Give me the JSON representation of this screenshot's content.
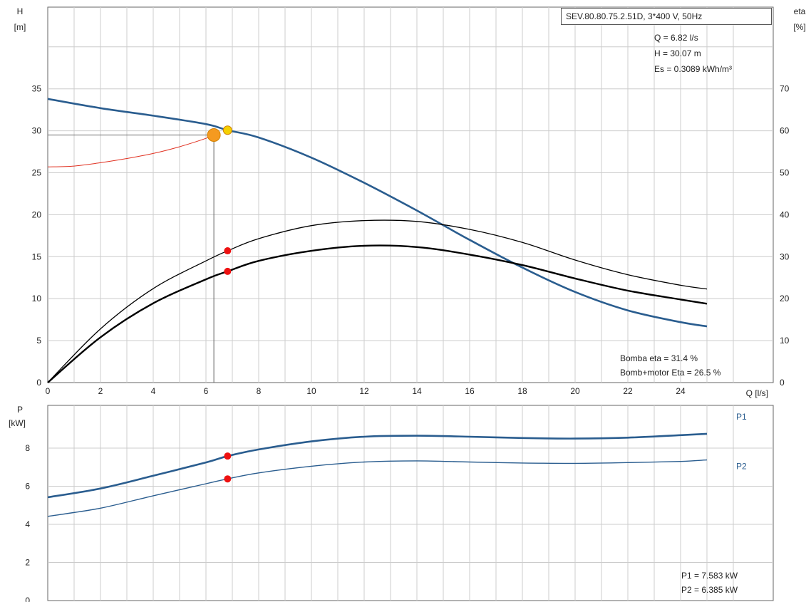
{
  "pump_label": "SEV.80.80.75.2.51D, 3*400 V, 50Hz",
  "operating_point": {
    "q": "Q = 6.82 l/s",
    "h": "H = 30.07 m",
    "es": "Es = 0.3089 kWh/m³"
  },
  "eta_readout": {
    "pump": "Bomba eta = 31.4 %",
    "pump_motor": "Bomb+motor Eta = 26.5 %"
  },
  "power_readout": {
    "p1": "P1 = 7.583 kW",
    "p2": "P2 = 6.385 kW"
  },
  "colors": {
    "head": "#2a5d8f",
    "system": "#e03020",
    "eta": "#000000",
    "power": "#2a5d8f",
    "marker_red": "#ee1111",
    "marker_yellow": "#f5d000",
    "marker_orange": "#f59a20",
    "grid": "#cccccc"
  },
  "chart_data": [
    {
      "type": "line",
      "title": "",
      "xlabel": "Q [l/s]",
      "ylabel": "H\n[m]",
      "y2label": "eta\n[%]",
      "xlim": [
        0,
        26
      ],
      "ylim": [
        0,
        40
      ],
      "y2lim": [
        0,
        80
      ],
      "xticks": [
        0,
        2,
        4,
        6,
        8,
        10,
        12,
        14,
        16,
        18,
        20,
        22,
        24
      ],
      "yticks": [
        0,
        5,
        10,
        15,
        20,
        25,
        30,
        35
      ],
      "y2ticks": [
        0,
        10,
        20,
        30,
        40,
        50,
        60,
        70
      ],
      "grid": true,
      "series": [
        {
          "key": "head",
          "axis": "left",
          "x": [
            0,
            2,
            4,
            6,
            6.82,
            8,
            10,
            12,
            14,
            16,
            18,
            20,
            22,
            24,
            25
          ],
          "y": [
            33.8,
            32.7,
            31.8,
            30.8,
            30.07,
            29.2,
            26.8,
            23.8,
            20.5,
            17.0,
            13.7,
            10.8,
            8.6,
            7.2,
            6.7
          ]
        },
        {
          "key": "system",
          "axis": "left",
          "x": [
            0,
            1,
            2,
            3,
            4,
            5,
            6,
            6.3
          ],
          "y": [
            25.7,
            25.8,
            26.2,
            26.7,
            27.3,
            28.1,
            29.1,
            29.5
          ]
        },
        {
          "key": "eta_pump",
          "axis": "right",
          "x": [
            0,
            2,
            4,
            6,
            6.82,
            8,
            10,
            12,
            14,
            16,
            18,
            20,
            22,
            24,
            25
          ],
          "y": [
            0,
            12.8,
            22.4,
            29.0,
            31.4,
            34.3,
            37.4,
            38.6,
            38.4,
            36.5,
            33.4,
            29.2,
            25.7,
            23.2,
            22.3
          ]
        },
        {
          "key": "eta_pump_motor",
          "axis": "right",
          "x": [
            0,
            2,
            4,
            6,
            6.82,
            8,
            10,
            12,
            14,
            16,
            18,
            20,
            22,
            24,
            25
          ],
          "y": [
            0,
            10.8,
            18.9,
            24.6,
            26.5,
            29.0,
            31.4,
            32.6,
            32.3,
            30.5,
            28.0,
            24.8,
            21.9,
            19.8,
            18.8
          ]
        }
      ],
      "markers": [
        {
          "key": "duty_head",
          "axis": "left",
          "x": 6.82,
          "y": 30.07,
          "color": "yellow"
        },
        {
          "key": "duty_system",
          "axis": "left",
          "x": 6.3,
          "y": 29.5,
          "color": "orange"
        },
        {
          "key": "duty_eta_pump",
          "axis": "right",
          "x": 6.82,
          "y": 31.4,
          "color": "red"
        },
        {
          "key": "duty_eta_pump_motor",
          "axis": "right",
          "x": 6.82,
          "y": 26.5,
          "color": "red"
        }
      ],
      "guides": [
        {
          "key": "guide-horizontal",
          "from": [
            0,
            29.5
          ],
          "to": [
            6.3,
            29.5
          ]
        },
        {
          "key": "guide-vertical",
          "from": [
            6.3,
            0
          ],
          "to": [
            6.3,
            29.5
          ]
        }
      ]
    },
    {
      "type": "line",
      "title": "",
      "xlabel": "",
      "ylabel": "P\n[kW]",
      "xlim": [
        0,
        26
      ],
      "ylim": [
        0,
        10
      ],
      "yticks": [
        0,
        2,
        4,
        6,
        8
      ],
      "grid": true,
      "series": [
        {
          "name": "P1",
          "key": "p1",
          "x": [
            0,
            2,
            4,
            6,
            6.82,
            8,
            10,
            12,
            14,
            16,
            18,
            20,
            22,
            24,
            25
          ],
          "y": [
            5.42,
            5.88,
            6.55,
            7.25,
            7.583,
            7.93,
            8.35,
            8.6,
            8.65,
            8.6,
            8.53,
            8.5,
            8.55,
            8.68,
            8.75
          ]
        },
        {
          "name": "P2",
          "key": "p2",
          "x": [
            0,
            2,
            4,
            6,
            6.82,
            8,
            10,
            12,
            14,
            16,
            18,
            20,
            22,
            24,
            25
          ],
          "y": [
            4.42,
            4.85,
            5.5,
            6.13,
            6.385,
            6.7,
            7.05,
            7.27,
            7.33,
            7.27,
            7.22,
            7.2,
            7.24,
            7.3,
            7.38
          ]
        }
      ],
      "markers": [
        {
          "key": "duty_p1",
          "x": 6.82,
          "y": 7.583,
          "color": "red"
        },
        {
          "key": "duty_p2",
          "x": 6.82,
          "y": 6.385,
          "color": "red"
        }
      ]
    }
  ]
}
